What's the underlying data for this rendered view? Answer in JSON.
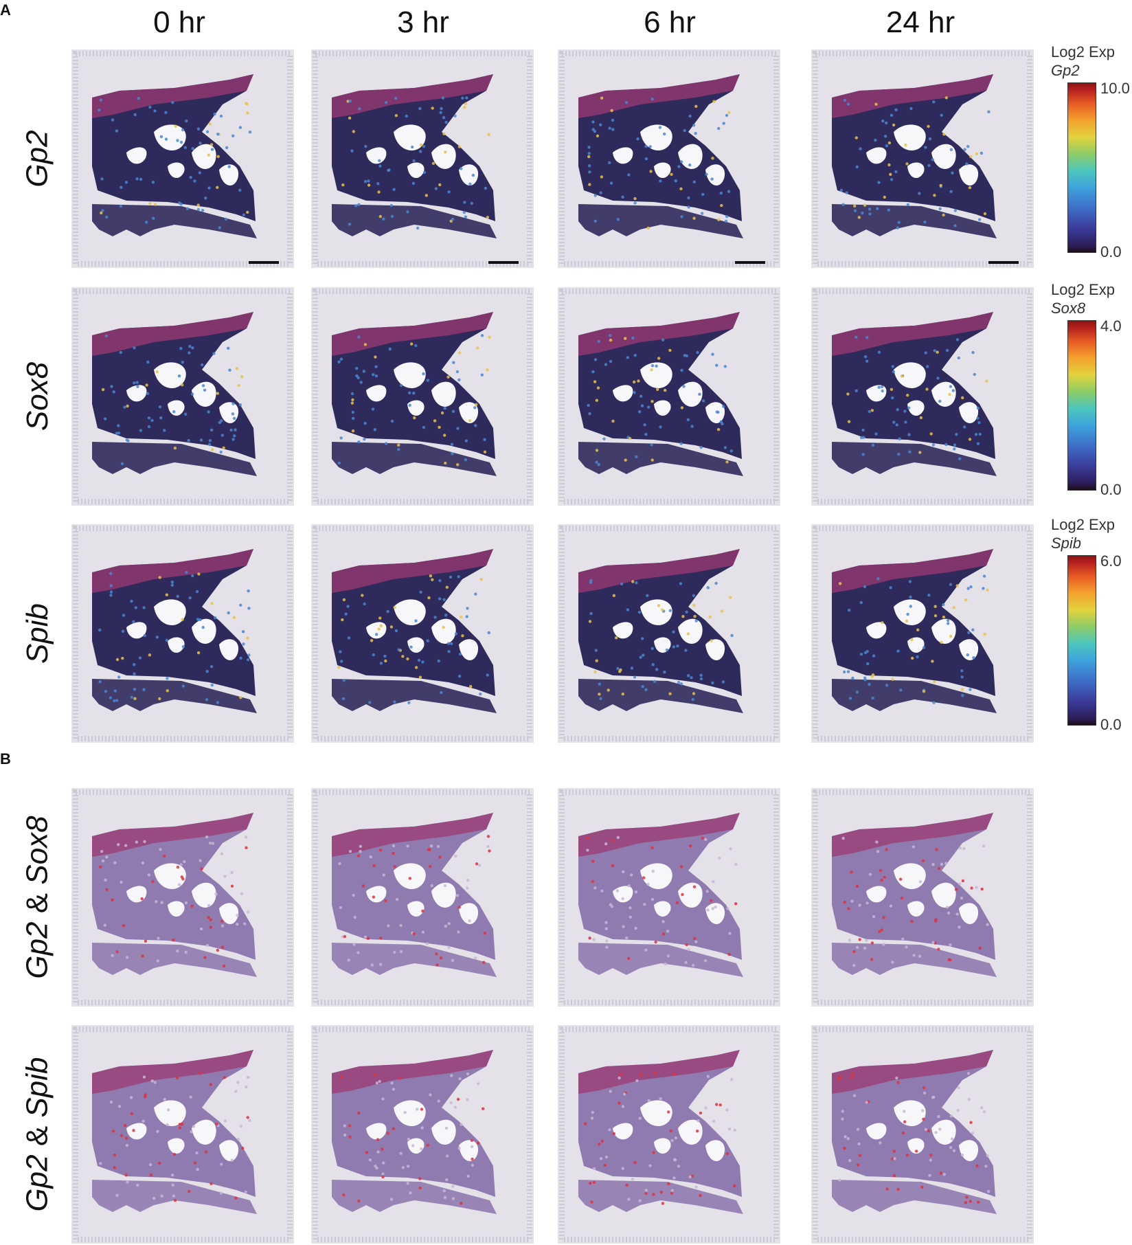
{
  "panels": {
    "a": "A",
    "b": "B"
  },
  "columns": [
    "0 hr",
    "3 hr",
    "6 hr",
    "24 hr"
  ],
  "rows_a": [
    "Gp2",
    "Sox8",
    "Spib"
  ],
  "rows_b": [
    {
      "gene1": "Gp2",
      "amp": "&",
      "gene2": "Sox8"
    },
    {
      "gene1": "Gp2",
      "amp": "&",
      "gene2": "Spib"
    }
  ],
  "legends": [
    {
      "title": "Log2 Exp",
      "gene": "Gp2",
      "max": "10.0",
      "min": "0.0"
    },
    {
      "title": "Log2 Exp",
      "gene": "Sox8",
      "max": "4.0",
      "min": "0.0"
    },
    {
      "title": "Log2 Exp",
      "gene": "Spib",
      "max": "6.0",
      "min": "0.0"
    }
  ],
  "colors": {
    "tile_bg": "#e4e2e8",
    "tissue_dark": "#2f2a5c",
    "tissue_pink": "#9c3a72",
    "tissue_light_b": "#8f7bb0",
    "hotspot": "#e03040",
    "expression_warm": "#e8c24a",
    "expression_cool": "#4a86d0"
  }
}
